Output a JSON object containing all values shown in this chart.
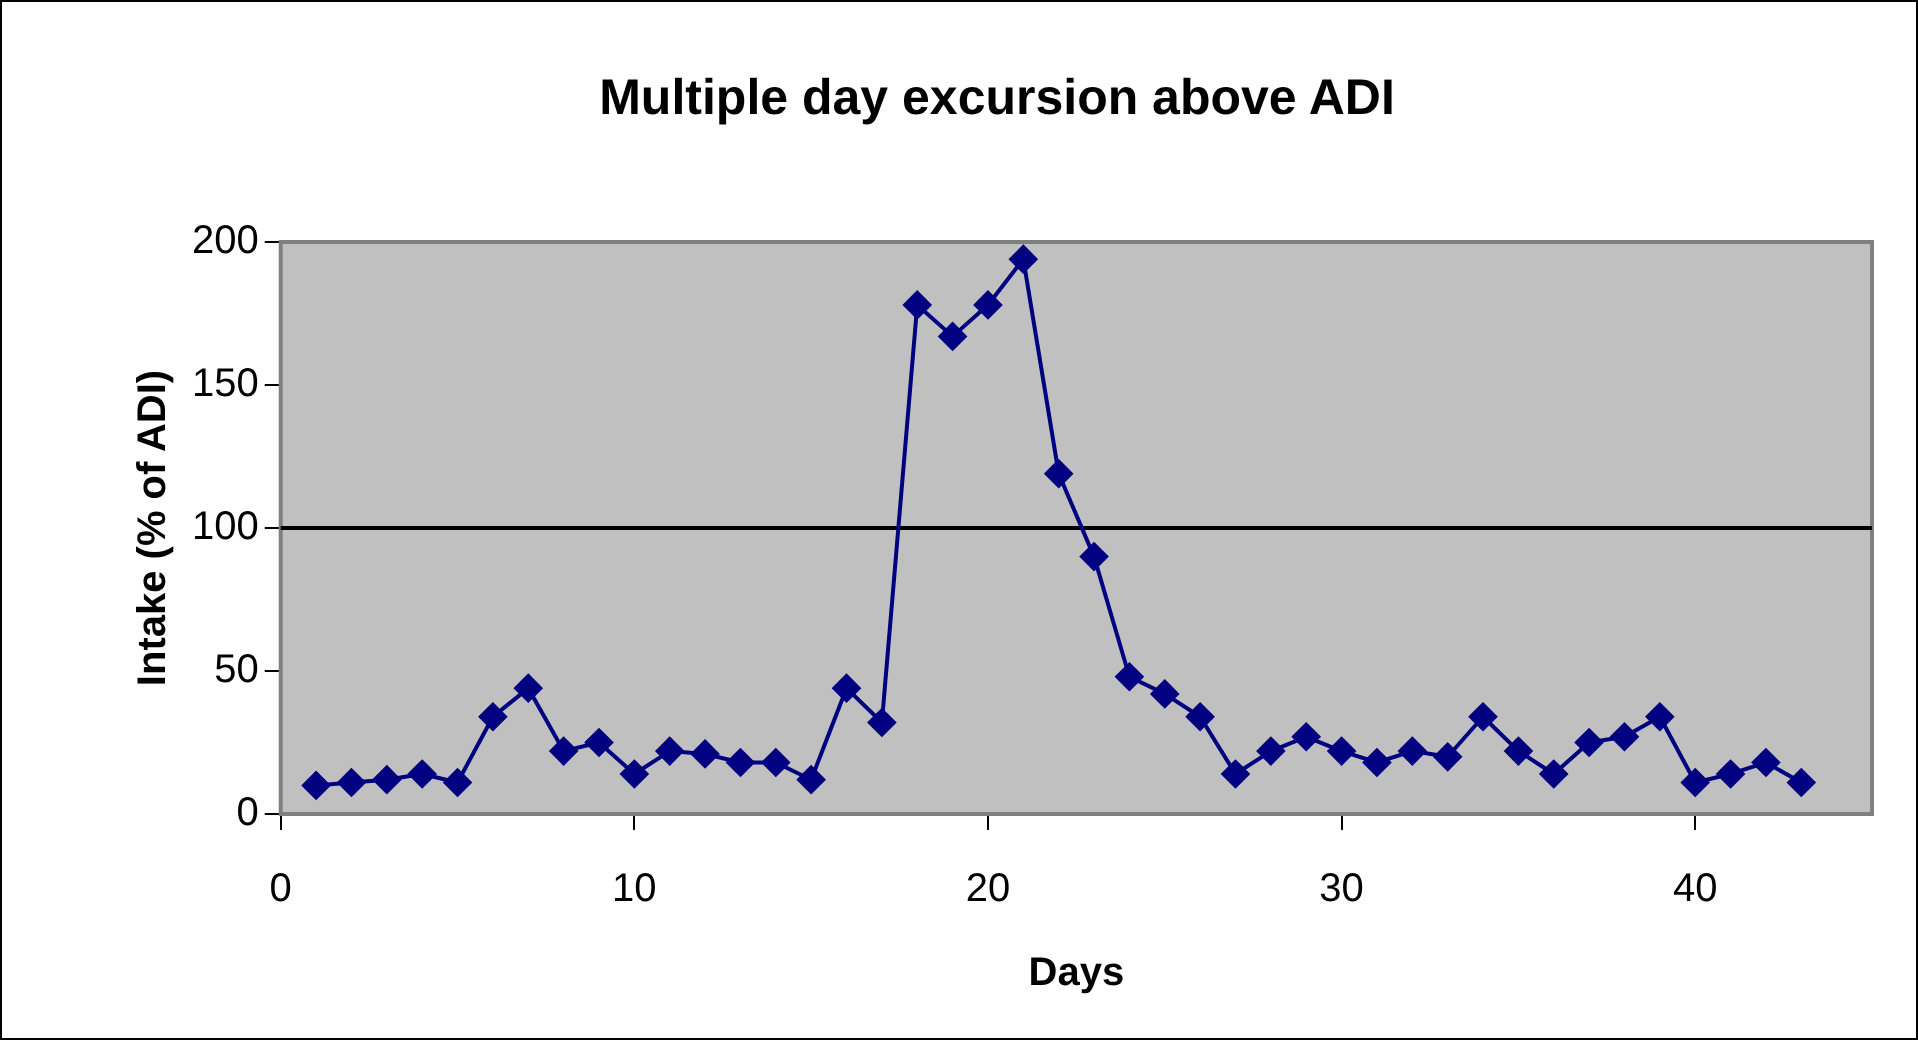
{
  "chart_data": {
    "type": "line",
    "title": "Multiple day excursion above ADI",
    "xlabel": "Days",
    "ylabel": "Intake (% of ADI)",
    "x": [
      1,
      2,
      3,
      4,
      5,
      6,
      7,
      8,
      9,
      10,
      11,
      12,
      13,
      14,
      15,
      16,
      17,
      18,
      19,
      20,
      21,
      22,
      23,
      24,
      25,
      26,
      27,
      28,
      29,
      30,
      31,
      32,
      33,
      34,
      35,
      36,
      37,
      38,
      39,
      40,
      41,
      42,
      43
    ],
    "series": [
      {
        "color": "#000080",
        "values": [
          10,
          11,
          12,
          14,
          11,
          34,
          44,
          22,
          25,
          14,
          22,
          21,
          18,
          18,
          12,
          44,
          32,
          178,
          167,
          178,
          194,
          119,
          90,
          48,
          42,
          34,
          14,
          22,
          27,
          22,
          18,
          22,
          20,
          34,
          22,
          14,
          25,
          27,
          34,
          11,
          14,
          18,
          11
        ]
      }
    ],
    "xlim": [
      0,
      45
    ],
    "xticks": [
      0,
      10,
      20,
      30,
      40
    ],
    "ylim": [
      0,
      200
    ],
    "yticks": [
      0,
      50,
      100,
      150,
      200
    ],
    "ref_lines": [
      {
        "axis": "y",
        "value": 100,
        "color": "#000000"
      }
    ],
    "legend": false,
    "marker": "diamond",
    "line_style": "solid"
  }
}
